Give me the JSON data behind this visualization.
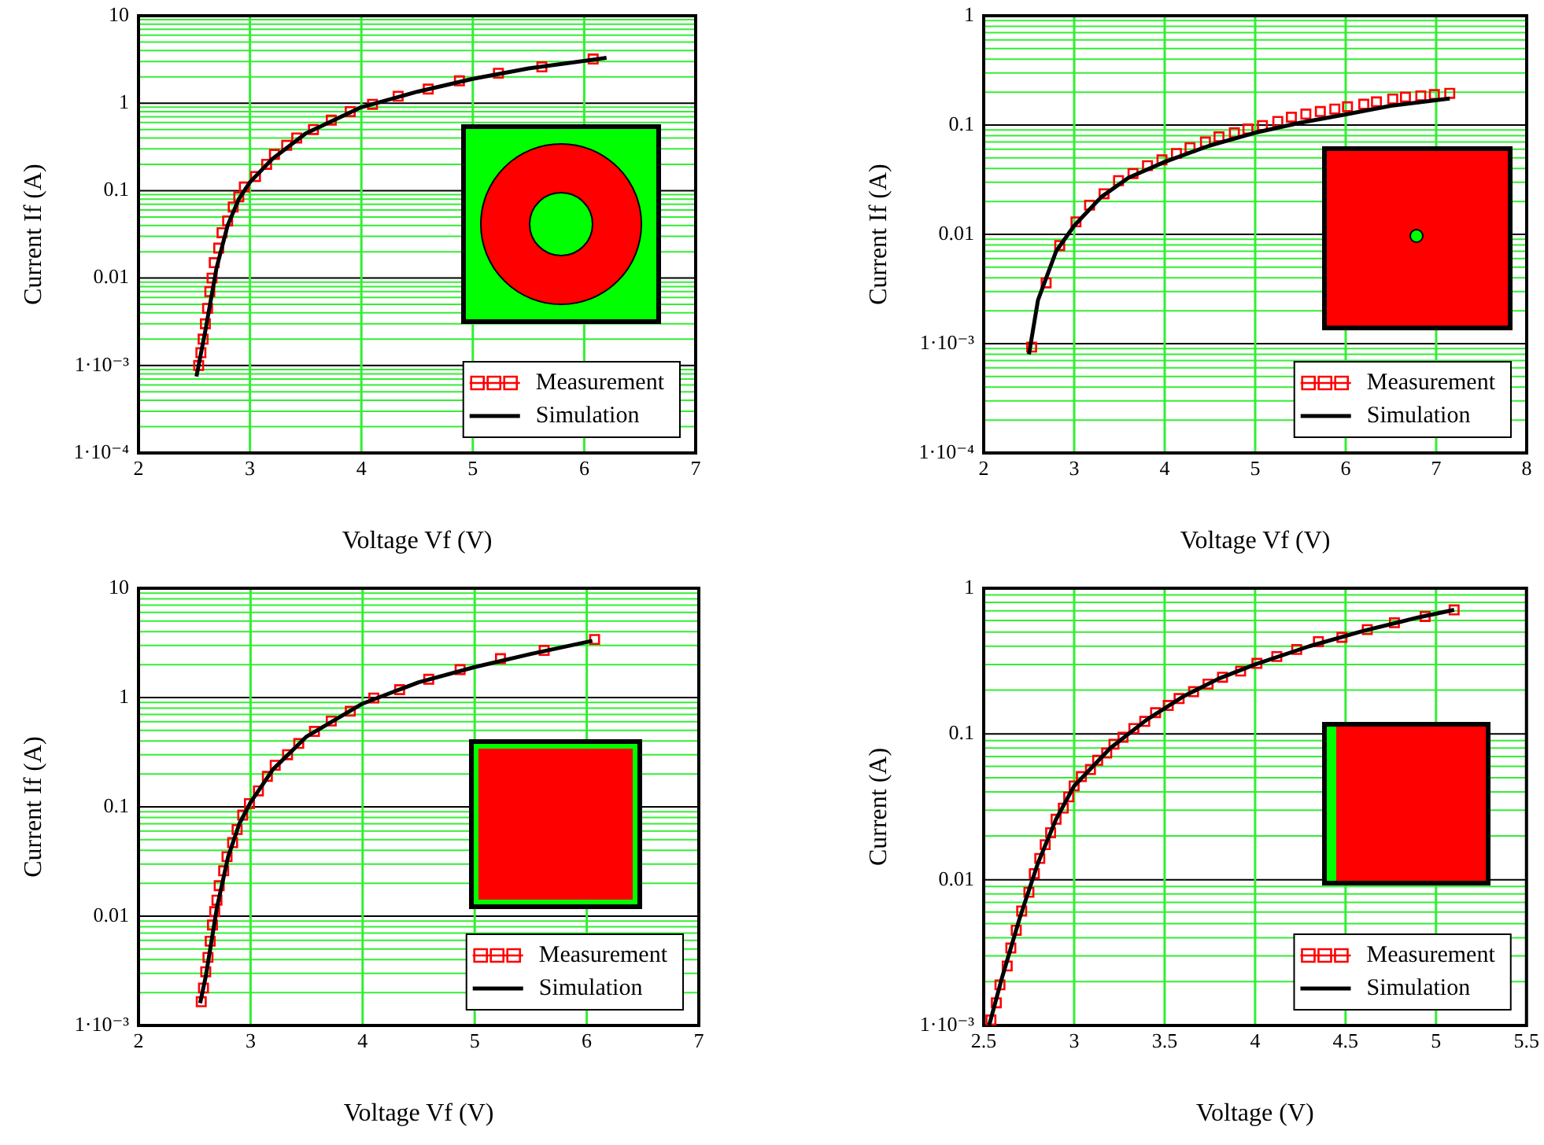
{
  "chart_data": [
    {
      "type": "line",
      "xlabel": "Voltage Vf (V)",
      "ylabel": "Current If (A)",
      "xlim": [
        2,
        7
      ],
      "xticks": [
        2,
        3,
        4,
        5,
        6,
        7
      ],
      "ylim": [
        0.0001,
        10
      ],
      "yticks": [
        {
          "value": 0.0001,
          "label": "1·10⁻⁴"
        },
        {
          "value": 0.0002,
          "label": null
        },
        {
          "value": 0.0003,
          "label": null
        },
        {
          "value": 0.0004,
          "label": null
        },
        {
          "value": 0.0005,
          "label": null
        },
        {
          "value": 0.0006,
          "label": null
        },
        {
          "value": 0.0007,
          "label": null
        },
        {
          "value": 0.0008,
          "label": null
        },
        {
          "value": 0.0009,
          "label": null
        },
        {
          "value": 0.001,
          "label": "1·10⁻³"
        },
        {
          "value": 0.002,
          "label": null
        },
        {
          "value": 0.003,
          "label": null
        },
        {
          "value": 0.004,
          "label": null
        },
        {
          "value": 0.005,
          "label": null
        },
        {
          "value": 0.006,
          "label": null
        },
        {
          "value": 0.007,
          "label": null
        },
        {
          "value": 0.008,
          "label": null
        },
        {
          "value": 0.009,
          "label": null
        },
        0.01,
        {
          "value": 0.02,
          "label": null
        },
        {
          "value": 0.03,
          "label": null
        },
        {
          "value": 0.04,
          "label": null
        },
        {
          "value": 0.05,
          "label": null
        },
        {
          "value": 0.06,
          "label": null
        },
        {
          "value": 0.07,
          "label": null
        },
        {
          "value": 0.08,
          "label": null
        },
        {
          "value": 0.09,
          "label": null
        },
        0.1,
        {
          "value": 0.2,
          "label": null
        },
        {
          "value": 0.3,
          "label": null
        },
        {
          "value": 0.4,
          "label": null
        },
        {
          "value": 0.5,
          "label": null
        },
        {
          "value": 0.6,
          "label": null
        },
        {
          "value": 0.7,
          "label": null
        },
        {
          "value": 0.8,
          "label": null
        },
        {
          "value": 0.9,
          "label": null
        },
        1,
        {
          "value": 2,
          "label": null
        },
        {
          "value": 3,
          "label": null
        },
        {
          "value": 4,
          "label": null
        },
        {
          "value": 5,
          "label": null
        },
        {
          "value": 6,
          "label": null
        },
        {
          "value": 7,
          "label": null
        },
        {
          "value": 8,
          "label": null
        },
        {
          "value": 9,
          "label": null
        },
        10
      ],
      "log": "y",
      "grid": true,
      "legend": "bottom right",
      "series": [
        {
          "name": "Measurement",
          "type": "scatter",
          "marker": "square",
          "color": "#ff0000",
          "x": [
            2.54,
            2.56,
            2.58,
            2.6,
            2.62,
            2.64,
            2.66,
            2.68,
            2.72,
            2.75,
            2.8,
            2.85,
            2.9,
            2.95,
            3.05,
            3.15,
            3.22,
            3.33,
            3.42,
            3.57,
            3.73,
            3.9,
            4.1,
            4.33,
            4.6,
            4.88,
            5.23,
            5.62,
            6.08
          ],
          "values": [
            0.001,
            0.0014,
            0.002,
            0.003,
            0.0045,
            0.007,
            0.01,
            0.015,
            0.022,
            0.033,
            0.045,
            0.065,
            0.085,
            0.11,
            0.145,
            0.2,
            0.26,
            0.33,
            0.4,
            0.5,
            0.64,
            0.8,
            0.97,
            1.2,
            1.45,
            1.8,
            2.2,
            2.6,
            3.2
          ]
        },
        {
          "name": "Simulation",
          "type": "line",
          "marker": "none",
          "color": "#000000",
          "x": [
            2.52,
            2.6,
            2.7,
            2.8,
            2.9,
            3,
            3.2,
            3.5,
            4,
            4.5,
            5,
            5.5,
            6.2
          ],
          "values": [
            0.00075,
            0.0025,
            0.013,
            0.04,
            0.08,
            0.125,
            0.23,
            0.45,
            0.9,
            1.35,
            1.9,
            2.5,
            3.3
          ]
        }
      ]
    },
    {
      "type": "line",
      "xlabel": "Voltage Vf (V)",
      "ylabel": "Current If (A)",
      "xlim": [
        2,
        8
      ],
      "xticks": [
        2,
        3,
        4,
        5,
        6,
        7,
        8
      ],
      "ylim": [
        0.0001,
        1
      ],
      "yticks": [
        {
          "value": 0.0001,
          "label": "1·10⁻⁴"
        },
        {
          "value": 0.0002,
          "label": null
        },
        {
          "value": 0.0003,
          "label": null
        },
        {
          "value": 0.0004,
          "label": null
        },
        {
          "value": 0.0005,
          "label": null
        },
        {
          "value": 0.0006,
          "label": null
        },
        {
          "value": 0.0007,
          "label": null
        },
        {
          "value": 0.0008,
          "label": null
        },
        {
          "value": 0.0009,
          "label": null
        },
        {
          "value": 0.001,
          "label": "1·10⁻³"
        },
        {
          "value": 0.002,
          "label": null
        },
        {
          "value": 0.003,
          "label": null
        },
        {
          "value": 0.004,
          "label": null
        },
        {
          "value": 0.005,
          "label": null
        },
        {
          "value": 0.006,
          "label": null
        },
        {
          "value": 0.007,
          "label": null
        },
        {
          "value": 0.008,
          "label": null
        },
        {
          "value": 0.009,
          "label": null
        },
        0.01,
        {
          "value": 0.02,
          "label": null
        },
        {
          "value": 0.03,
          "label": null
        },
        {
          "value": 0.04,
          "label": null
        },
        {
          "value": 0.05,
          "label": null
        },
        {
          "value": 0.06,
          "label": null
        },
        {
          "value": 0.07,
          "label": null
        },
        {
          "value": 0.08,
          "label": null
        },
        {
          "value": 0.09,
          "label": null
        },
        0.1,
        {
          "value": 0.2,
          "label": null
        },
        {
          "value": 0.3,
          "label": null
        },
        {
          "value": 0.4,
          "label": null
        },
        {
          "value": 0.5,
          "label": null
        },
        {
          "value": 0.6,
          "label": null
        },
        {
          "value": 0.7,
          "label": null
        },
        {
          "value": 0.8,
          "label": null
        },
        {
          "value": 0.9,
          "label": null
        },
        1
      ],
      "log": "y",
      "grid": true,
      "legend": "bottom right",
      "series": [
        {
          "name": "Measurement",
          "type": "scatter",
          "marker": "square",
          "color": "#ff0000",
          "x": [
            2.53,
            2.69,
            2.84,
            3.02,
            3.17,
            3.33,
            3.49,
            3.65,
            3.81,
            3.97,
            4.13,
            4.28,
            4.45,
            4.6,
            4.77,
            4.92,
            5.08,
            5.25,
            5.4,
            5.56,
            5.72,
            5.88,
            6.02,
            6.2,
            6.34,
            6.52,
            6.66,
            6.83,
            6.98,
            7.15
          ],
          "values": [
            0.00093,
            0.0036,
            0.0079,
            0.013,
            0.0185,
            0.0235,
            0.031,
            0.036,
            0.0425,
            0.048,
            0.055,
            0.062,
            0.07,
            0.078,
            0.085,
            0.092,
            0.099,
            0.108,
            0.118,
            0.126,
            0.133,
            0.14,
            0.147,
            0.155,
            0.163,
            0.173,
            0.18,
            0.185,
            0.19,
            0.195
          ]
        },
        {
          "name": "Simulation",
          "type": "line",
          "marker": "none",
          "color": "#000000",
          "x": [
            2.5,
            2.6,
            2.8,
            3,
            3.3,
            3.6,
            4,
            4.5,
            5,
            5.5,
            6,
            6.5,
            7.15
          ],
          "values": [
            0.0008,
            0.0025,
            0.007,
            0.012,
            0.022,
            0.033,
            0.046,
            0.065,
            0.085,
            0.105,
            0.125,
            0.15,
            0.175
          ]
        }
      ]
    },
    {
      "type": "line",
      "xlabel": "Voltage Vf (V)",
      "ylabel": "Current If (A)",
      "xlim": [
        2,
        7
      ],
      "xticks": [
        2,
        3,
        4,
        5,
        6,
        7
      ],
      "ylim": [
        0.001,
        10
      ],
      "yticks": [
        {
          "value": 0.001,
          "label": "1·10⁻³"
        },
        {
          "value": 0.002,
          "label": null
        },
        {
          "value": 0.003,
          "label": null
        },
        {
          "value": 0.004,
          "label": null
        },
        {
          "value": 0.005,
          "label": null
        },
        {
          "value": 0.006,
          "label": null
        },
        {
          "value": 0.007,
          "label": null
        },
        {
          "value": 0.008,
          "label": null
        },
        {
          "value": 0.009,
          "label": null
        },
        0.01,
        {
          "value": 0.02,
          "label": null
        },
        {
          "value": 0.03,
          "label": null
        },
        {
          "value": 0.04,
          "label": null
        },
        {
          "value": 0.05,
          "label": null
        },
        {
          "value": 0.06,
          "label": null
        },
        {
          "value": 0.07,
          "label": null
        },
        {
          "value": 0.08,
          "label": null
        },
        {
          "value": 0.09,
          "label": null
        },
        0.1,
        {
          "value": 0.2,
          "label": null
        },
        {
          "value": 0.3,
          "label": null
        },
        {
          "value": 0.4,
          "label": null
        },
        {
          "value": 0.5,
          "label": null
        },
        {
          "value": 0.6,
          "label": null
        },
        {
          "value": 0.7,
          "label": null
        },
        {
          "value": 0.8,
          "label": null
        },
        {
          "value": 0.9,
          "label": null
        },
        1,
        {
          "value": 2,
          "label": null
        },
        {
          "value": 3,
          "label": null
        },
        {
          "value": 4,
          "label": null
        },
        {
          "value": 5,
          "label": null
        },
        {
          "value": 6,
          "label": null
        },
        {
          "value": 7,
          "label": null
        },
        {
          "value": 8,
          "label": null
        },
        {
          "value": 9,
          "label": null
        },
        10
      ],
      "log": "y",
      "grid": true,
      "legend": "bottom right",
      "series": [
        {
          "name": "Measurement",
          "type": "scatter",
          "marker": "square",
          "color": "#ff0000",
          "x": [
            2.56,
            2.58,
            2.6,
            2.62,
            2.64,
            2.66,
            2.68,
            2.7,
            2.72,
            2.76,
            2.79,
            2.84,
            2.88,
            2.93,
            2.99,
            3.07,
            3.15,
            3.22,
            3.33,
            3.43,
            3.57,
            3.72,
            3.89,
            4.1,
            4.33,
            4.59,
            4.87,
            5.23,
            5.62,
            6.07
          ],
          "values": [
            0.00165,
            0.0022,
            0.0031,
            0.0042,
            0.0059,
            0.0083,
            0.011,
            0.014,
            0.019,
            0.026,
            0.035,
            0.047,
            0.062,
            0.084,
            0.107,
            0.14,
            0.19,
            0.24,
            0.3,
            0.38,
            0.49,
            0.61,
            0.75,
            0.99,
            1.18,
            1.47,
            1.8,
            2.27,
            2.7,
            3.4
          ]
        },
        {
          "name": "Simulation",
          "type": "line",
          "marker": "none",
          "color": "#000000",
          "x": [
            2.55,
            2.6,
            2.7,
            2.8,
            2.9,
            3,
            3.2,
            3.5,
            4,
            4.5,
            5,
            5.5,
            6.05
          ],
          "values": [
            0.0016,
            0.0028,
            0.012,
            0.035,
            0.07,
            0.11,
            0.22,
            0.44,
            0.88,
            1.38,
            1.9,
            2.5,
            3.3
          ]
        }
      ]
    },
    {
      "type": "line",
      "xlabel": "Voltage (V)",
      "ylabel": "Current (A)",
      "xlim": [
        2.5,
        5.5
      ],
      "xticks": [
        2.5,
        3,
        3.5,
        4,
        4.5,
        5,
        5.5
      ],
      "ylim": [
        0.001,
        1
      ],
      "yticks": [
        {
          "value": 0.001,
          "label": "1·10⁻³"
        },
        {
          "value": 0.002,
          "label": null
        },
        {
          "value": 0.003,
          "label": null
        },
        {
          "value": 0.004,
          "label": null
        },
        {
          "value": 0.005,
          "label": null
        },
        {
          "value": 0.006,
          "label": null
        },
        {
          "value": 0.007,
          "label": null
        },
        {
          "value": 0.008,
          "label": null
        },
        {
          "value": 0.009,
          "label": null
        },
        0.01,
        {
          "value": 0.02,
          "label": null
        },
        {
          "value": 0.03,
          "label": null
        },
        {
          "value": 0.04,
          "label": null
        },
        {
          "value": 0.05,
          "label": null
        },
        {
          "value": 0.06,
          "label": null
        },
        {
          "value": 0.07,
          "label": null
        },
        {
          "value": 0.08,
          "label": null
        },
        {
          "value": 0.09,
          "label": null
        },
        0.1,
        {
          "value": 0.2,
          "label": null
        },
        {
          "value": 0.3,
          "label": null
        },
        {
          "value": 0.4,
          "label": null
        },
        {
          "value": 0.5,
          "label": null
        },
        {
          "value": 0.6,
          "label": null
        },
        {
          "value": 0.7,
          "label": null
        },
        {
          "value": 0.8,
          "label": null
        },
        {
          "value": 0.9,
          "label": null
        },
        1
      ],
      "log": "y",
      "grid": true,
      "legend": "bottom right",
      "series": [
        {
          "name": "Measurement",
          "type": "scatter",
          "marker": "square",
          "color": "#ff0000",
          "x": [
            2.54,
            2.57,
            2.59,
            2.63,
            2.65,
            2.68,
            2.71,
            2.75,
            2.78,
            2.81,
            2.84,
            2.87,
            2.9,
            2.94,
            2.97,
            3.0,
            3.04,
            3.09,
            3.13,
            3.18,
            3.22,
            3.27,
            3.33,
            3.39,
            3.45,
            3.52,
            3.58,
            3.66,
            3.74,
            3.82,
            3.92,
            4.01,
            4.12,
            4.23,
            4.35,
            4.48,
            4.62,
            4.77,
            4.94,
            5.1
          ],
          "values": [
            0.00109,
            0.00143,
            0.0019,
            0.00256,
            0.0034,
            0.0045,
            0.0061,
            0.0082,
            0.011,
            0.014,
            0.0174,
            0.021,
            0.026,
            0.031,
            0.037,
            0.044,
            0.051,
            0.057,
            0.066,
            0.074,
            0.085,
            0.095,
            0.109,
            0.122,
            0.14,
            0.157,
            0.175,
            0.195,
            0.22,
            0.245,
            0.27,
            0.305,
            0.34,
            0.38,
            0.43,
            0.46,
            0.52,
            0.58,
            0.64,
            0.71
          ]
        },
        {
          "name": "Simulation",
          "type": "line",
          "marker": "none",
          "color": "#000000",
          "x": [
            2.53,
            2.6,
            2.7,
            2.8,
            2.9,
            3,
            3.2,
            3.4,
            3.6,
            3.8,
            4,
            4.3,
            4.6,
            4.9,
            5.1
          ],
          "values": [
            0.001,
            0.0021,
            0.0055,
            0.013,
            0.026,
            0.044,
            0.08,
            0.125,
            0.18,
            0.24,
            0.3,
            0.4,
            0.51,
            0.63,
            0.71
          ]
        }
      ]
    }
  ]
}
